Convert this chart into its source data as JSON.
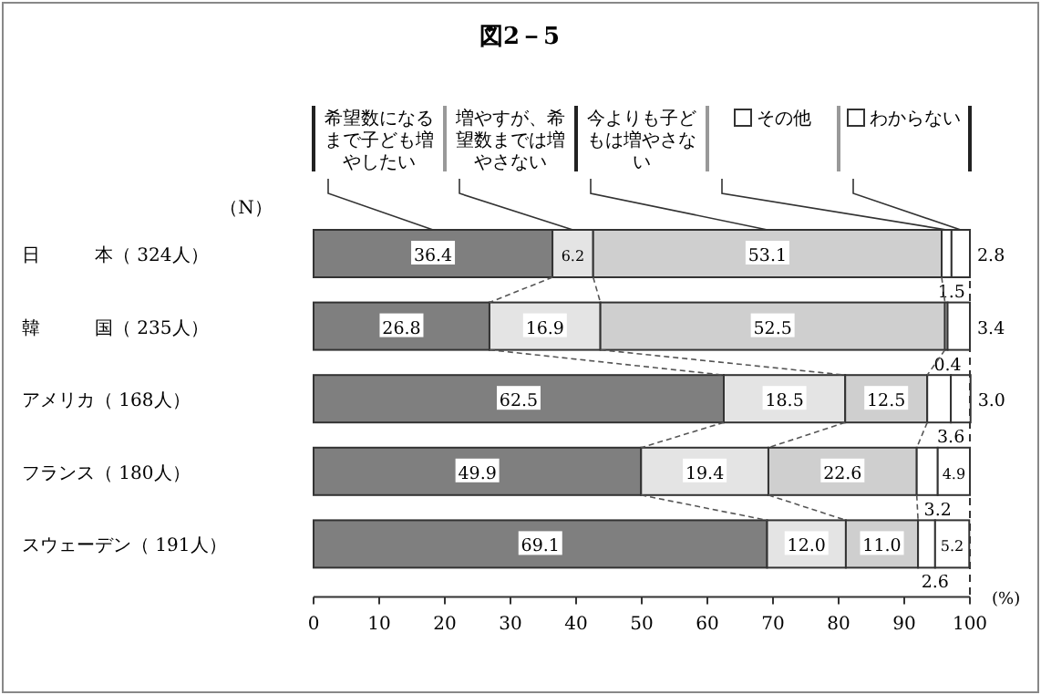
{
  "chart_data": {
    "type": "bar",
    "orientation": "horizontal",
    "stacked": true,
    "title": "図2－5",
    "categories": [
      "日　　　本（ 324人）",
      "韓　　　国（ 235人）",
      "アメリカ（ 168人）",
      "フランス（ 180人）",
      "スウェーデン（ 191人）"
    ],
    "series": [
      {
        "name": "希望数になるまで子ども増やしたい",
        "color": "#7f7f7f",
        "values": [
          36.4,
          26.8,
          62.5,
          49.9,
          69.1
        ],
        "value_labels": [
          "36.4",
          "26.8",
          "62.5",
          "49.9",
          "69.1"
        ]
      },
      {
        "name": "増やすが、希望数までは増やさない",
        "color": "#e4e4e4",
        "values": [
          6.2,
          16.9,
          18.5,
          19.4,
          12.0
        ],
        "value_labels": [
          "6.2",
          "16.9",
          "18.5",
          "19.4",
          "12.0"
        ]
      },
      {
        "name": "今よりも子どもは増やさない",
        "color": "#cfcfcf",
        "values": [
          53.1,
          52.5,
          12.5,
          22.6,
          11.0
        ],
        "value_labels": [
          "53.1",
          "52.5",
          "12.5",
          "22.6",
          "11.0"
        ]
      },
      {
        "name": "その他",
        "color": "#ffffff",
        "values": [
          1.5,
          0.4,
          3.6,
          3.2,
          2.6
        ],
        "value_labels": [
          "1.5",
          "0.4",
          "3.6",
          "3.2",
          "2.6"
        ]
      },
      {
        "name": "わからない",
        "color": "#ffffff",
        "values": [
          2.8,
          3.4,
          3.0,
          4.9,
          5.2
        ],
        "value_labels": [
          "2.8",
          "3.4",
          "3.0",
          "4.9",
          "5.2"
        ]
      }
    ],
    "xlim": [
      0,
      100
    ],
    "xticks": [
      0,
      10,
      20,
      30,
      40,
      50,
      60,
      70,
      80,
      90,
      100
    ],
    "xlabel": "(%)",
    "legend": "top",
    "annotations": [
      "（N）"
    ]
  }
}
